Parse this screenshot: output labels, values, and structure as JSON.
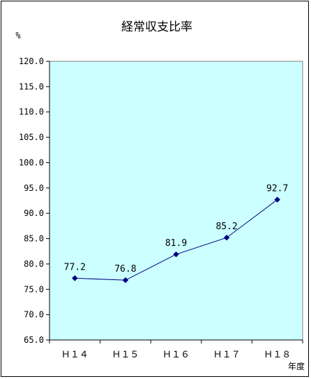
{
  "chart_data": {
    "type": "line",
    "title": "経常収支比率",
    "ylabel": "%",
    "xlabel": "年度",
    "categories": [
      "Ｈ１４",
      "Ｈ１５",
      "Ｈ１６",
      "Ｈ１７",
      "Ｈ１８"
    ],
    "series": [
      {
        "values": [
          77.2,
          76.8,
          81.9,
          85.2,
          92.7
        ],
        "color": "#000080"
      }
    ],
    "data_labels": [
      "77.2",
      "76.8",
      "81.9",
      "85.2",
      "92.7"
    ],
    "ylim": [
      65.0,
      120.0
    ],
    "yticks": [
      "120.0",
      "115.0",
      "110.0",
      "105.0",
      "100.0",
      "95.0",
      "90.0",
      "85.0",
      "80.0",
      "75.0",
      "70.0",
      "65.0"
    ],
    "grid": false,
    "plot_background": "#ccffff",
    "marker": "diamond"
  }
}
